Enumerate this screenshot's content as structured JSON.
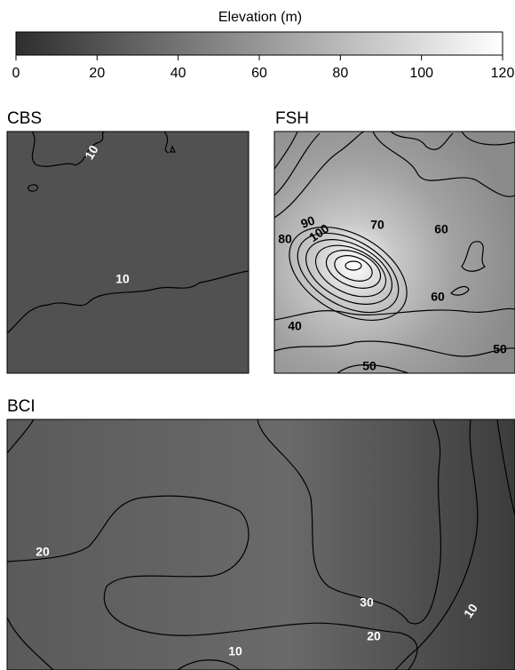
{
  "colorbar": {
    "title": "Elevation (m)",
    "lim": [
      0,
      120
    ],
    "ticks": [
      0,
      20,
      40,
      60,
      80,
      100,
      120
    ]
  },
  "panels": [
    {
      "title": "CBS",
      "contour_labels": [
        10,
        10
      ]
    },
    {
      "title": "FSH",
      "contour_labels": [
        90,
        100,
        80,
        70,
        60,
        60,
        40,
        50,
        50
      ]
    },
    {
      "title": "BCI",
      "contour_labels": [
        20,
        30,
        20,
        10,
        10
      ]
    }
  ]
}
